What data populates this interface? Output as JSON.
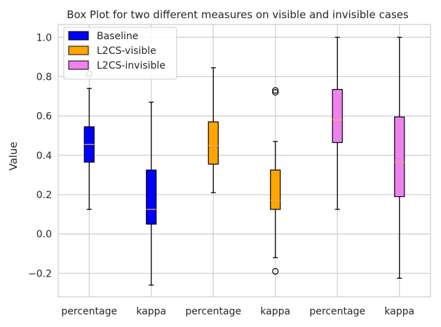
{
  "chart_data": {
    "type": "box",
    "title": "Box Plot for two different measures on visible and invisible cases",
    "xlabel": "",
    "ylabel": "Value",
    "ylim": [
      -0.32,
      1.065
    ],
    "yticks": [
      -0.2,
      0.0,
      0.2,
      0.4,
      0.6,
      0.8,
      1.0
    ],
    "ytick_labels": [
      "−0.2",
      "0.0",
      "0.2",
      "0.4",
      "0.6",
      "0.8",
      "1.0"
    ],
    "categories": [
      "percentage",
      "kappa",
      "percentage",
      "kappa",
      "percentage",
      "kappa"
    ],
    "grid": true,
    "legend_position": "top-left",
    "legend": [
      {
        "label": "Baseline",
        "color": "#0000ff"
      },
      {
        "label": "L2CS-visible",
        "color": "#ffa500"
      },
      {
        "label": "L2CS-invisible",
        "color": "#ee82ee"
      }
    ],
    "boxes": [
      {
        "series": "Baseline",
        "category": "percentage",
        "whisker_low": 0.125,
        "q1": 0.365,
        "median": 0.455,
        "q3": 0.545,
        "whisker_high": 0.74,
        "outliers": [
          0.815
        ]
      },
      {
        "series": "Baseline",
        "category": "kappa",
        "whisker_low": -0.26,
        "q1": 0.05,
        "median": 0.125,
        "q3": 0.325,
        "whisker_high": 0.67,
        "outliers": []
      },
      {
        "series": "L2CS-visible",
        "category": "percentage",
        "whisker_low": 0.21,
        "q1": 0.355,
        "median": 0.45,
        "q3": 0.57,
        "whisker_high": 0.845,
        "outliers": []
      },
      {
        "series": "L2CS-visible",
        "category": "kappa",
        "whisker_low": -0.12,
        "q1": 0.125,
        "median": 0.17,
        "q3": 0.325,
        "whisker_high": 0.47,
        "outliers": [
          0.72,
          0.73,
          -0.19
        ]
      },
      {
        "series": "L2CS-invisible",
        "category": "percentage",
        "whisker_low": 0.125,
        "q1": 0.465,
        "median": 0.58,
        "q3": 0.735,
        "whisker_high": 1.0,
        "outliers": []
      },
      {
        "series": "L2CS-invisible",
        "category": "kappa",
        "whisker_low": -0.225,
        "q1": 0.19,
        "median": 0.365,
        "q3": 0.595,
        "whisker_high": 1.0,
        "outliers": []
      }
    ],
    "median_color": "#f0a868"
  }
}
